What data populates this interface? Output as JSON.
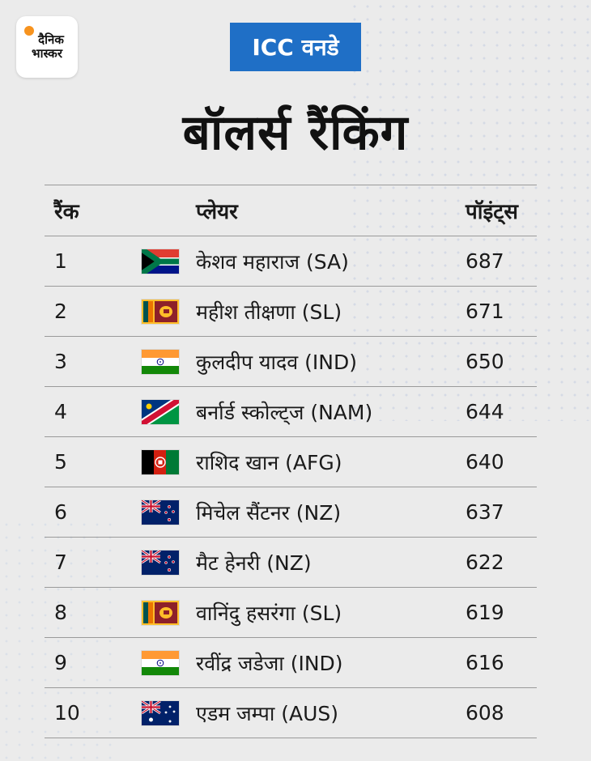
{
  "logo": {
    "line1": "दैनिक",
    "line2": "भास्कर"
  },
  "badge": "ICC वनडे",
  "title": "बॉलर्स रैंकिंग",
  "headers": {
    "rank": "रैंक",
    "player": "प्लेयर",
    "points": "पॉइंट्स"
  },
  "rows": [
    {
      "rank": "1",
      "player": "केशव महाराज (SA)",
      "points": "687",
      "flag": "south-africa"
    },
    {
      "rank": "2",
      "player": "महीश तीक्षणा (SL)",
      "points": "671",
      "flag": "sri-lanka"
    },
    {
      "rank": "3",
      "player": "कुलदीप यादव (IND)",
      "points": "650",
      "flag": "india"
    },
    {
      "rank": "4",
      "player": "बर्नार्ड स्कोल्ट्ज (NAM)",
      "points": "644",
      "flag": "namibia"
    },
    {
      "rank": "5",
      "player": "राशिद खान (AFG)",
      "points": "640",
      "flag": "afghanistan"
    },
    {
      "rank": "6",
      "player": "मिचेल सैंटनर (NZ)",
      "points": "637",
      "flag": "new-zealand"
    },
    {
      "rank": "7",
      "player": "मैट हेनरी (NZ)",
      "points": "622",
      "flag": "new-zealand"
    },
    {
      "rank": "8",
      "player": "वानिंदु हसरंगा (SL)",
      "points": "619",
      "flag": "sri-lanka"
    },
    {
      "rank": "9",
      "player": "रवींद्र जडेजा (IND)",
      "points": "616",
      "flag": "india"
    },
    {
      "rank": "10",
      "player": "एडम जम्पा (AUS)",
      "points": "608",
      "flag": "australia"
    }
  ],
  "colors": {
    "badge": "#1f6fc6",
    "logo_sun": "#f7931e",
    "divider": "#9a9a9a"
  }
}
